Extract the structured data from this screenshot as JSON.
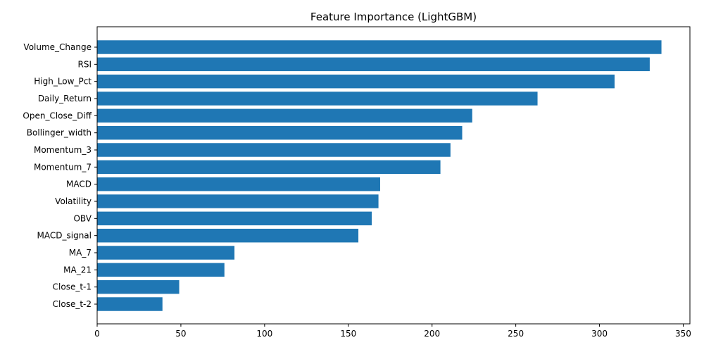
{
  "chart_data": {
    "type": "bar",
    "orientation": "horizontal",
    "title": "Feature Importance (LightGBM)",
    "xlabel": "",
    "ylabel": "",
    "categories": [
      "Volume_Change",
      "RSI",
      "High_Low_Pct",
      "Daily_Return",
      "Open_Close_Diff",
      "Bollinger_width",
      "Momentum_3",
      "Momentum_7",
      "MACD",
      "Volatility",
      "OBV",
      "MACD_signal",
      "MA_7",
      "MA_21",
      "Close_t-1",
      "Close_t-2"
    ],
    "values": [
      337,
      330,
      309,
      263,
      224,
      218,
      211,
      205,
      169,
      168,
      164,
      156,
      82,
      76,
      49,
      39
    ],
    "xlim": [
      0,
      354
    ],
    "xticks": [
      0,
      50,
      100,
      150,
      200,
      250,
      300,
      350
    ],
    "bar_color": "#1f77b4",
    "grid": false,
    "legend": "none"
  }
}
